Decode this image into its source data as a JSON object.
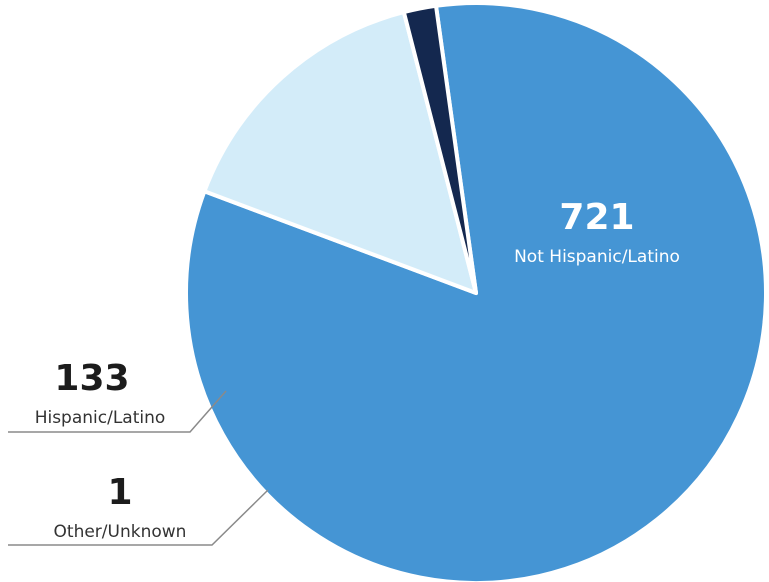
{
  "chart_data": {
    "type": "pie",
    "slices": [
      {
        "label": "Not Hispanic/Latino",
        "value": 721,
        "value_text": "721",
        "color": "#4595d4"
      },
      {
        "label": "Hispanic/Latino",
        "value": 133,
        "value_text": "133",
        "color": "#d3ecf9"
      },
      {
        "label": "Other/Unknown",
        "value": 1,
        "value_text": "1",
        "color": "#14284f"
      }
    ]
  }
}
